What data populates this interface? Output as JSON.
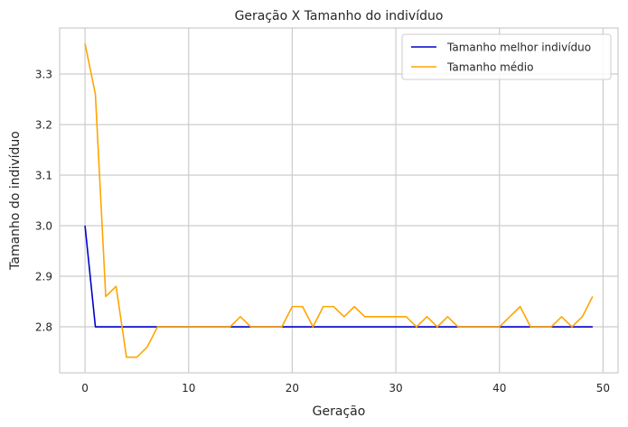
{
  "chart_data": {
    "type": "line",
    "title": "Geração X Tamanho do indivíduo",
    "xlabel": "Geração",
    "ylabel": "Tamanho do indivíduo",
    "xlim": [
      -2.45,
      51.45
    ],
    "ylim": [
      2.709,
      3.391
    ],
    "xticks": [
      0,
      10,
      20,
      30,
      40,
      50
    ],
    "yticks": [
      2.8,
      2.9,
      3.0,
      3.1,
      3.2,
      3.3
    ],
    "ytick_labels": [
      "2.8",
      "2.9",
      "3.0",
      "3.1",
      "3.2",
      "3.3"
    ],
    "grid": true,
    "legend_position": "top-right",
    "series": [
      {
        "name": "Tamanho melhor indivíduo",
        "color": "#0000cc",
        "x": [
          0,
          1,
          2,
          3,
          4,
          5,
          6,
          7,
          8,
          9,
          10,
          11,
          12,
          13,
          14,
          15,
          16,
          17,
          18,
          19,
          20,
          21,
          22,
          23,
          24,
          25,
          26,
          27,
          28,
          29,
          30,
          31,
          32,
          33,
          34,
          35,
          36,
          37,
          38,
          39,
          40,
          41,
          42,
          43,
          44,
          45,
          46,
          47,
          48,
          49
        ],
        "values": [
          3.0,
          2.8,
          2.8,
          2.8,
          2.8,
          2.8,
          2.8,
          2.8,
          2.8,
          2.8,
          2.8,
          2.8,
          2.8,
          2.8,
          2.8,
          2.8,
          2.8,
          2.8,
          2.8,
          2.8,
          2.8,
          2.8,
          2.8,
          2.8,
          2.8,
          2.8,
          2.8,
          2.8,
          2.8,
          2.8,
          2.8,
          2.8,
          2.8,
          2.8,
          2.8,
          2.8,
          2.8,
          2.8,
          2.8,
          2.8,
          2.8,
          2.8,
          2.8,
          2.8,
          2.8,
          2.8,
          2.8,
          2.8,
          2.8,
          2.8
        ]
      },
      {
        "name": "Tamanho médio",
        "color": "#ffa500",
        "x": [
          0,
          1,
          2,
          3,
          4,
          5,
          6,
          7,
          8,
          9,
          10,
          11,
          12,
          13,
          14,
          15,
          16,
          17,
          18,
          19,
          20,
          21,
          22,
          23,
          24,
          25,
          26,
          27,
          28,
          29,
          30,
          31,
          32,
          33,
          34,
          35,
          36,
          37,
          38,
          39,
          40,
          41,
          42,
          43,
          44,
          45,
          46,
          47,
          48,
          49
        ],
        "values": [
          3.36,
          3.26,
          2.86,
          2.88,
          2.74,
          2.74,
          2.76,
          2.8,
          2.8,
          2.8,
          2.8,
          2.8,
          2.8,
          2.8,
          2.8,
          2.82,
          2.8,
          2.8,
          2.8,
          2.8,
          2.84,
          2.84,
          2.8,
          2.84,
          2.84,
          2.82,
          2.84,
          2.82,
          2.82,
          2.82,
          2.82,
          2.82,
          2.8,
          2.82,
          2.8,
          2.82,
          2.8,
          2.8,
          2.8,
          2.8,
          2.8,
          2.82,
          2.84,
          2.8,
          2.8,
          2.8,
          2.82,
          2.8,
          2.82,
          2.86
        ]
      }
    ]
  }
}
